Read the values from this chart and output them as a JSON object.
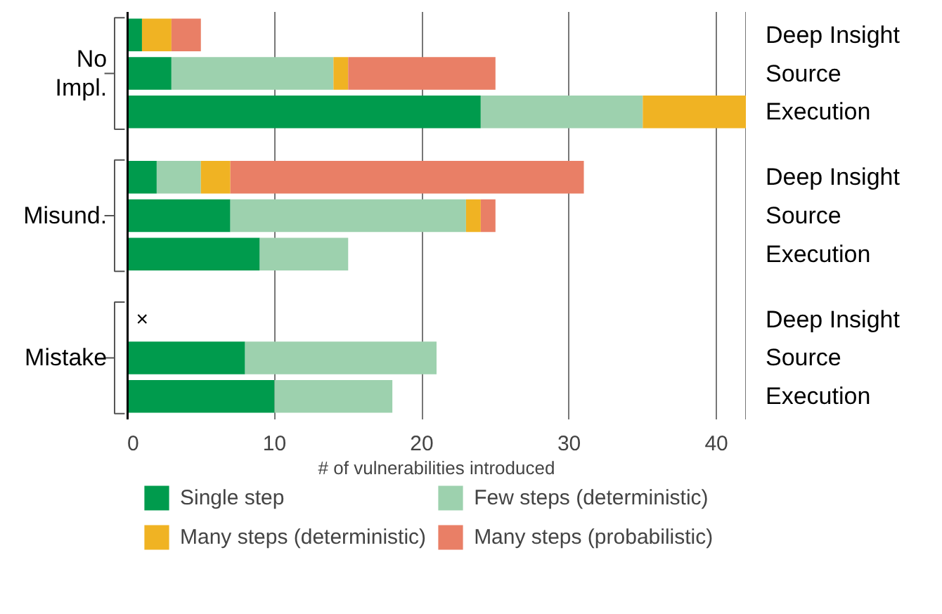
{
  "chart_data": {
    "type": "bar",
    "orientation": "horizontal",
    "stacked": true,
    "categories": [
      "Deep Insight",
      "Source",
      "Execution",
      "Deep Insight",
      "Source",
      "Execution",
      "Deep Insight",
      "Source",
      "Execution"
    ],
    "series": [
      {
        "name": "Single step",
        "color": "#009b4d",
        "values": [
          1,
          3,
          24,
          2,
          7,
          9,
          0,
          8,
          10
        ]
      },
      {
        "name": "Few steps (deterministic)",
        "color": "#9dd1ae",
        "values": [
          0,
          11,
          11,
          3,
          16,
          6,
          0,
          13,
          8
        ]
      },
      {
        "name": "Many steps (deterministic)",
        "color": "#f0b323",
        "values": [
          2,
          1,
          7,
          2,
          1,
          0,
          0,
          0,
          0
        ]
      },
      {
        "name": "Many steps (probabilistic)",
        "color": "#e97f66",
        "values": [
          2,
          10,
          0,
          24,
          1,
          0,
          0,
          0,
          0
        ]
      }
    ],
    "xlabel": "# of vulnerabilities introduced",
    "xlim": [
      0,
      42
    ],
    "xticks": [
      0,
      10,
      20,
      30,
      40
    ],
    "grid": "x",
    "legend": "bottom",
    "annotations": [
      "No Impl.",
      "Misund.",
      "Mistake",
      "×"
    ]
  }
}
